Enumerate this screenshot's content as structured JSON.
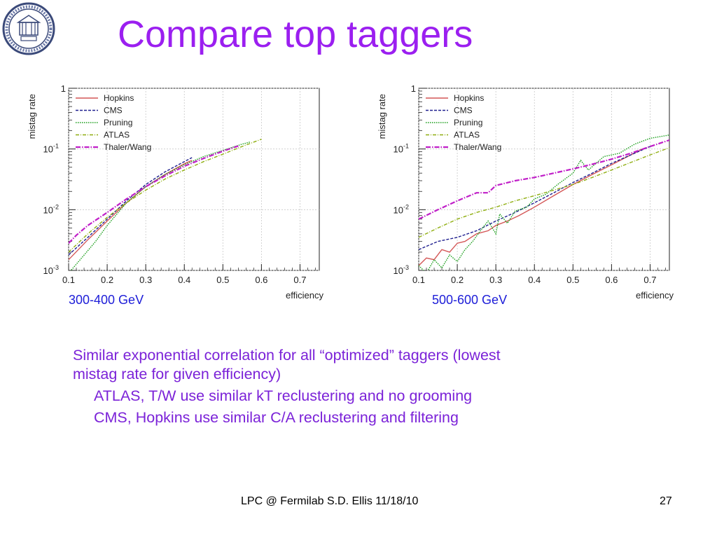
{
  "slide": {
    "title": "Compare top taggers",
    "bullets": {
      "main": "Similar exponential correlation for all “optimized” taggers (lowest mistag rate for given efficiency)",
      "sub1": "ATLAS, T/W use similar kT reclustering and no grooming",
      "sub2": "CMS, Hopkins use similar C/A reclustering and filtering"
    },
    "footer": {
      "text": "LPC @ Fermilab  S.D. Ellis    11/18/10",
      "page": "27"
    }
  },
  "chart_data": [
    {
      "type": "line",
      "title": "",
      "caption": "300-400 GeV",
      "xlabel": "efficiency",
      "ylabel": "mistag rate",
      "xlim": [
        0.1,
        0.75
      ],
      "ylim": [
        0.001,
        1
      ],
      "yscale": "log",
      "grid": true,
      "legend_position": "top-left",
      "x_ticks": [
        "0.1",
        "0.2",
        "0.3",
        "0.4",
        "0.5",
        "0.6",
        "0.7"
      ],
      "y_ticks": [
        {
          "mant": "1",
          "exp": ""
        },
        {
          "mant": "10",
          "exp": "-1"
        },
        {
          "mant": "10",
          "exp": "-2"
        },
        {
          "mant": "10",
          "exp": "-3"
        }
      ],
      "series": [
        {
          "name": "Hopkins",
          "color": "#d45757",
          "dash": "none",
          "x": [
            0.1,
            0.15,
            0.2,
            0.25,
            0.3,
            0.35,
            0.4,
            0.42
          ],
          "y": [
            0.0015,
            0.0032,
            0.0065,
            0.013,
            0.024,
            0.038,
            0.057,
            0.065
          ]
        },
        {
          "name": "CMS",
          "color": "#1f1f8f",
          "dash": "4,2",
          "x": [
            0.1,
            0.15,
            0.2,
            0.25,
            0.3,
            0.35,
            0.4,
            0.42
          ],
          "y": [
            0.0018,
            0.0035,
            0.007,
            0.014,
            0.026,
            0.042,
            0.062,
            0.072
          ]
        },
        {
          "name": "Pruning",
          "color": "#1a9e1a",
          "dash": "1.5,1.5",
          "x": [
            0.1,
            0.13,
            0.17,
            0.2,
            0.25,
            0.3,
            0.35,
            0.4,
            0.45,
            0.5,
            0.55,
            0.57
          ],
          "y": [
            0.0009,
            0.0015,
            0.003,
            0.0055,
            0.013,
            0.024,
            0.038,
            0.055,
            0.075,
            0.095,
            0.12,
            0.13
          ]
        },
        {
          "name": "ATLAS",
          "color": "#8fae10",
          "dash": "5,2,1,2",
          "x": [
            0.1,
            0.15,
            0.2,
            0.25,
            0.3,
            0.35,
            0.4,
            0.45,
            0.5,
            0.55,
            0.6
          ],
          "y": [
            0.002,
            0.004,
            0.0075,
            0.013,
            0.021,
            0.032,
            0.045,
            0.062,
            0.082,
            0.11,
            0.145
          ]
        },
        {
          "name": "Thaler/Wang",
          "color": "#c01ec8",
          "dash": "7,2,1.5,2",
          "x": [
            0.1,
            0.12,
            0.15,
            0.2,
            0.25,
            0.3,
            0.35,
            0.4,
            0.45,
            0.5,
            0.54
          ],
          "y": [
            0.0028,
            0.0038,
            0.0055,
            0.009,
            0.015,
            0.024,
            0.036,
            0.052,
            0.07,
            0.092,
            0.112
          ]
        }
      ]
    },
    {
      "type": "line",
      "title": "",
      "caption": "500-600 GeV",
      "xlabel": "efficiency",
      "ylabel": "mistag rate",
      "xlim": [
        0.1,
        0.75
      ],
      "ylim": [
        0.001,
        1
      ],
      "yscale": "log",
      "grid": true,
      "legend_position": "top-left",
      "x_ticks": [
        "0.1",
        "0.2",
        "0.3",
        "0.4",
        "0.5",
        "0.6",
        "0.7"
      ],
      "y_ticks": [
        {
          "mant": "1",
          "exp": ""
        },
        {
          "mant": "10",
          "exp": "-1"
        },
        {
          "mant": "10",
          "exp": "-2"
        },
        {
          "mant": "10",
          "exp": "-3"
        }
      ],
      "series": [
        {
          "name": "Hopkins",
          "color": "#d45757",
          "dash": "none",
          "x": [
            0.1,
            0.12,
            0.14,
            0.16,
            0.18,
            0.2,
            0.22,
            0.25,
            0.28,
            0.3,
            0.33,
            0.36,
            0.4,
            0.45,
            0.5,
            0.55,
            0.6,
            0.65,
            0.68
          ],
          "y": [
            0.0012,
            0.0016,
            0.0015,
            0.0022,
            0.002,
            0.0028,
            0.003,
            0.004,
            0.0045,
            0.0055,
            0.0065,
            0.008,
            0.011,
            0.017,
            0.026,
            0.038,
            0.055,
            0.08,
            0.1
          ]
        },
        {
          "name": "CMS",
          "color": "#1f1f8f",
          "dash": "4,2",
          "x": [
            0.1,
            0.15,
            0.2,
            0.25,
            0.3,
            0.35,
            0.4,
            0.45,
            0.5,
            0.55,
            0.6,
            0.65,
            0.7
          ],
          "y": [
            0.0022,
            0.003,
            0.0035,
            0.0045,
            0.0065,
            0.009,
            0.013,
            0.019,
            0.028,
            0.04,
            0.058,
            0.08,
            0.11
          ]
        },
        {
          "name": "Pruning",
          "color": "#1a9e1a",
          "dash": "1.5,1.5",
          "x": [
            0.1,
            0.12,
            0.14,
            0.16,
            0.18,
            0.2,
            0.22,
            0.24,
            0.26,
            0.28,
            0.3,
            0.31,
            0.33,
            0.35,
            0.38,
            0.4,
            0.43,
            0.46,
            0.5,
            0.52,
            0.54,
            0.58,
            0.62,
            0.66,
            0.7,
            0.75
          ],
          "y": [
            0.0012,
            0.0009,
            0.0015,
            0.0011,
            0.0018,
            0.0014,
            0.0022,
            0.003,
            0.0045,
            0.0065,
            0.004,
            0.0085,
            0.006,
            0.0095,
            0.011,
            0.015,
            0.018,
            0.026,
            0.04,
            0.065,
            0.045,
            0.075,
            0.085,
            0.12,
            0.15,
            0.17
          ]
        },
        {
          "name": "ATLAS",
          "color": "#8fae10",
          "dash": "5,2,1,2",
          "x": [
            0.1,
            0.15,
            0.2,
            0.25,
            0.3,
            0.35,
            0.4,
            0.45,
            0.5,
            0.55,
            0.6,
            0.65,
            0.7,
            0.75
          ],
          "y": [
            0.0035,
            0.005,
            0.007,
            0.009,
            0.011,
            0.014,
            0.017,
            0.021,
            0.026,
            0.034,
            0.045,
            0.06,
            0.08,
            0.105
          ]
        },
        {
          "name": "Thaler/Wang",
          "color": "#c01ec8",
          "dash": "7,2,1.5,2",
          "x": [
            0.1,
            0.15,
            0.2,
            0.25,
            0.28,
            0.3,
            0.35,
            0.4,
            0.45,
            0.5,
            0.55,
            0.6,
            0.65,
            0.7,
            0.75
          ],
          "y": [
            0.007,
            0.01,
            0.014,
            0.019,
            0.019,
            0.025,
            0.03,
            0.034,
            0.04,
            0.047,
            0.056,
            0.068,
            0.085,
            0.11,
            0.14
          ]
        }
      ]
    }
  ]
}
